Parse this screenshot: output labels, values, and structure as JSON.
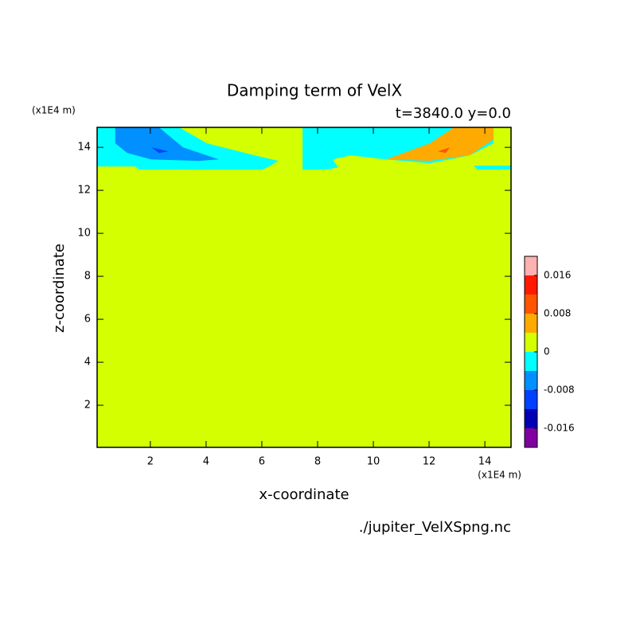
{
  "chart_data": {
    "type": "contour",
    "title": "Damping term of VelX",
    "subtitle": "t=3840.0 y=0.0",
    "x_label": "x-coordinate",
    "y_label": "z-coordinate",
    "x_unit": "(x1E4 m)",
    "y_unit": "(x1E4 m)",
    "source": "./jupiter_VelXSpng.nc",
    "xlim": [
      0.09,
      14.94
    ],
    "ylim": [
      0.04,
      14.93
    ],
    "xticks": [
      2,
      4,
      6,
      8,
      10,
      12,
      14
    ],
    "yticks": [
      2,
      4,
      6,
      8,
      10,
      12,
      14
    ],
    "levels": [
      -0.02,
      -0.016,
      -0.012,
      -0.008,
      -0.004,
      0,
      0.004,
      0.008,
      0.012,
      0.016,
      0.02
    ],
    "colors": [
      "#8000a0",
      "#0000b4",
      "#0040ff",
      "#0090ff",
      "#00ffff",
      "#d4ff00",
      "#ffaa00",
      "#ff5500",
      "#ff1a00",
      "#ffb0b0"
    ],
    "colorbar_ticks": [
      -0.016,
      -0.008,
      0,
      0.008,
      0.016
    ],
    "regions": [
      {
        "value": 0,
        "points": [
          [
            0.09,
            0.04
          ],
          [
            14.94,
            0.04
          ],
          [
            14.94,
            14.93
          ],
          [
            0.09,
            14.93
          ]
        ]
      },
      {
        "value": -0.004,
        "points": [
          [
            0.09,
            14.93
          ],
          [
            3.03,
            14.93
          ],
          [
            4.03,
            14.19
          ],
          [
            5.74,
            13.63
          ],
          [
            6.6,
            13.37
          ],
          [
            6.31,
            13.15
          ],
          [
            6.03,
            12.96
          ],
          [
            1.6,
            12.96
          ],
          [
            1.46,
            13.11
          ],
          [
            0.09,
            13.11
          ]
        ]
      },
      {
        "value": -0.008,
        "points": [
          [
            0.74,
            14.93
          ],
          [
            2.31,
            14.93
          ],
          [
            3.17,
            14
          ],
          [
            4.46,
            13.44
          ],
          [
            3.74,
            13.37
          ],
          [
            2.03,
            13.44
          ],
          [
            1.17,
            13.74
          ],
          [
            0.74,
            14.19
          ]
        ]
      },
      {
        "value": -0.012,
        "points": [
          [
            2.03,
            14
          ],
          [
            2.66,
            13.81
          ],
          [
            2.31,
            13.74
          ]
        ]
      },
      {
        "value": -0.004,
        "points": [
          [
            7.46,
            14.93
          ],
          [
            14.31,
            14.93
          ],
          [
            14.31,
            14.19
          ],
          [
            13.46,
            13.63
          ],
          [
            12.03,
            13.26
          ],
          [
            10.46,
            13.44
          ],
          [
            9.17,
            13.63
          ],
          [
            8.54,
            13.44
          ],
          [
            8.74,
            13.07
          ],
          [
            8.31,
            12.96
          ],
          [
            7.46,
            12.96
          ]
        ]
      },
      {
        "value": -0.004,
        "points": [
          [
            13.6,
            13.15
          ],
          [
            14.94,
            13.15
          ],
          [
            14.94,
            12.96
          ],
          [
            13.74,
            12.96
          ]
        ]
      },
      {
        "value": 0.004,
        "points": [
          [
            10.46,
            13.44
          ],
          [
            12.03,
            14.19
          ],
          [
            12.89,
            14.93
          ],
          [
            14.31,
            14.93
          ],
          [
            14.31,
            14.37
          ],
          [
            13.46,
            13.63
          ],
          [
            12.03,
            13.37
          ]
        ]
      },
      {
        "value": 0.008,
        "points": [
          [
            12.31,
            13.81
          ],
          [
            12.74,
            14
          ],
          [
            12.6,
            13.74
          ]
        ]
      }
    ]
  }
}
